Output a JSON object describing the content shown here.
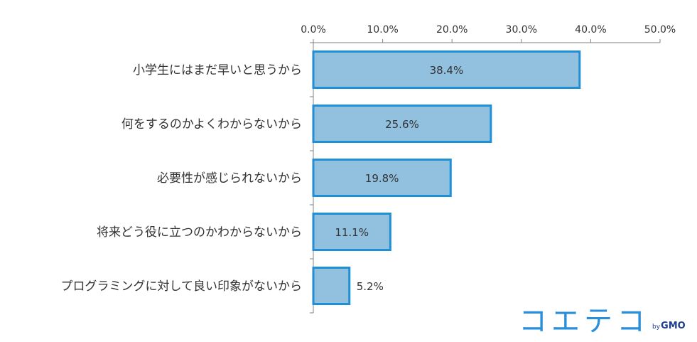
{
  "chart_data": {
    "type": "bar",
    "orientation": "horizontal",
    "categories": [
      "小学生にはまだ早いと思うから",
      "何をするのかよくわからないから",
      "必要性が感じられないから",
      "将来どう役に立つのかわからないから",
      "プログラミングに対して良い印象がないから"
    ],
    "values": [
      38.4,
      25.6,
      19.8,
      11.1,
      5.2
    ],
    "value_labels": [
      "38.4%",
      "25.6%",
      "19.8%",
      "11.1%",
      "5.2%"
    ],
    "xlim": [
      0,
      50
    ],
    "ticks": [
      0,
      10,
      20,
      30,
      40,
      50
    ],
    "tick_labels": [
      "0.0%",
      "10.0%",
      "20.0%",
      "30.0%",
      "40.0%",
      "50.0%"
    ],
    "axis_position": "top",
    "grid": false,
    "legend": "none",
    "title": "",
    "xlabel": "",
    "ylabel": ""
  },
  "colors": {
    "bar_fill": "#92c0df",
    "bar_stroke": "#1f8fd6",
    "axis": "#808080",
    "text": "#333333",
    "logo_main": "#2a8fd8",
    "logo_sub": "#1d3f8c"
  },
  "logo": {
    "main": "コエテコ",
    "by": "by",
    "brand": "GMO"
  }
}
